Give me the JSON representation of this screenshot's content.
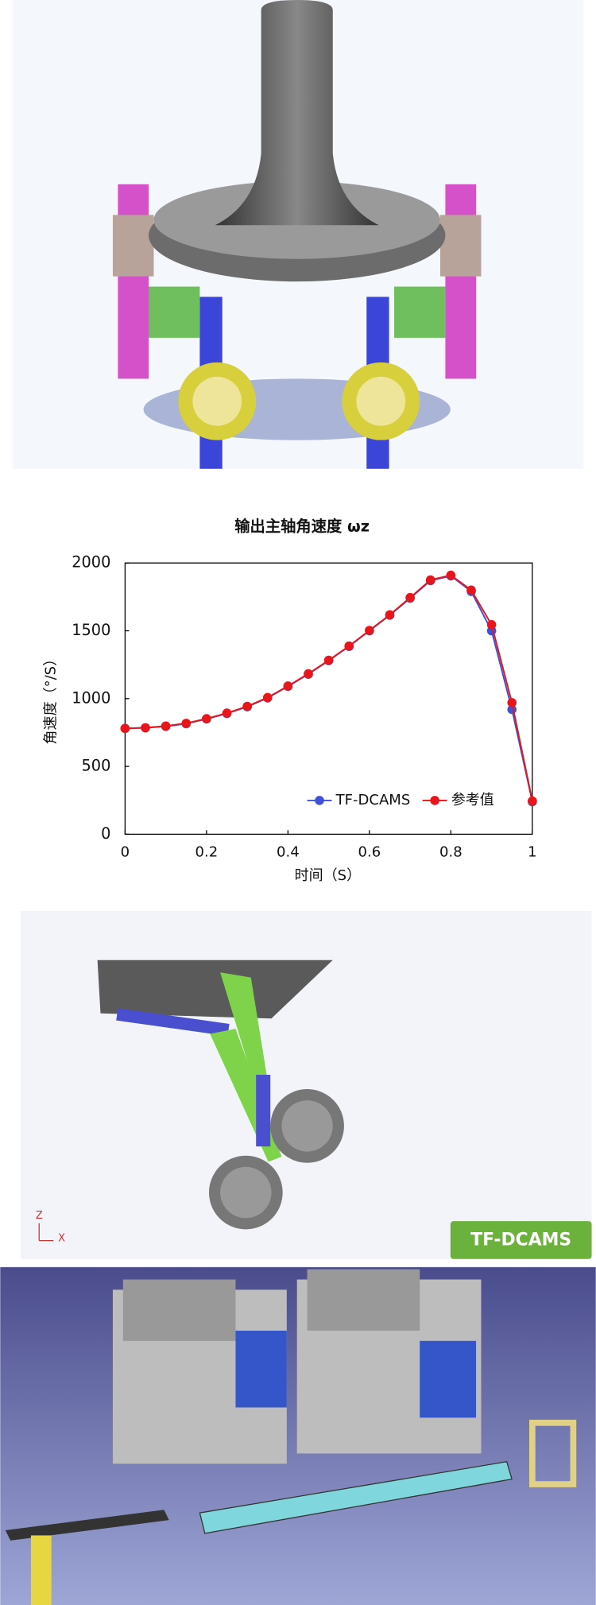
{
  "chart_data": {
    "type": "line",
    "title": "输出主轴角速度 ωz",
    "x_label": "时间（S）",
    "y_label": "角速度（°/S）",
    "x": [
      0,
      0.05,
      0.1,
      0.15,
      0.2,
      0.25,
      0.3,
      0.35,
      0.4,
      0.45,
      0.5,
      0.55,
      0.6,
      0.65,
      0.7,
      0.75,
      0.8,
      0.85,
      0.9,
      0.95,
      1
    ],
    "series": [
      {
        "name": "TF-DCAMS",
        "color": "#3f51d6",
        "values": [
          780,
          785,
          795,
          815,
          850,
          890,
          940,
          1005,
          1090,
          1180,
          1280,
          1385,
          1500,
          1615,
          1740,
          1870,
          1905,
          1790,
          1500,
          920,
          240
        ]
      },
      {
        "name": "参考值",
        "color": "#e8161b",
        "values": [
          780,
          785,
          798,
          818,
          852,
          893,
          943,
          1008,
          1093,
          1183,
          1283,
          1388,
          1503,
          1618,
          1745,
          1875,
          1910,
          1800,
          1545,
          970,
          245
        ]
      }
    ],
    "xlim": [
      0,
      1
    ],
    "xticks": [
      0,
      0.2,
      0.4,
      0.6,
      0.8,
      1
    ],
    "ylim": [
      0,
      2000
    ],
    "yticks": [
      0,
      500,
      1000,
      1500,
      2000
    ],
    "legend": "lower right"
  },
  "images": {
    "landing_gear": {
      "badge": "TF-DCAMS",
      "triad": [
        "Z",
        "X"
      ]
    }
  }
}
